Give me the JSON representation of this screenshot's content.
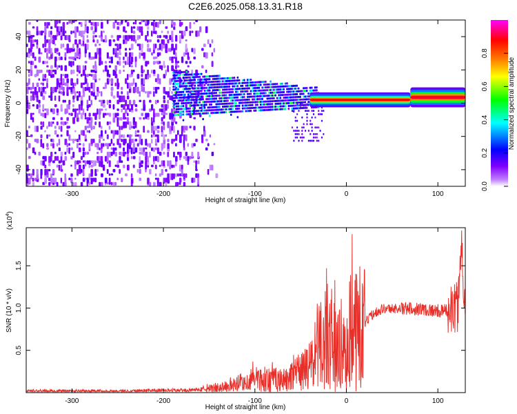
{
  "title": "C2E6.2025.058.13.31.R18",
  "chart_data": [
    {
      "type": "heatmap",
      "xlabel": "Height of straight line (km)",
      "ylabel": "Frequency (Hz)",
      "xlim": [
        -350,
        130
      ],
      "ylim": [
        -50,
        50
      ],
      "xticks": [
        -300,
        -200,
        -100,
        0,
        100
      ],
      "yticks": [
        -40,
        -20,
        0,
        20,
        40
      ],
      "colorbar": {
        "label": "Normalized spectral amplitude",
        "range": [
          0,
          1
        ],
        "ticks": [
          "0.0",
          "0.2",
          "0.4",
          "0.6",
          "0.8"
        ],
        "colormap": [
          "#ffffff",
          "#8000ff",
          "#0000ff",
          "#00ffff",
          "#00ff00",
          "#ffff00",
          "#ff8000",
          "#ff0000",
          "#ff00ff"
        ]
      },
      "regions": [
        {
          "x": [
            -350,
            -180
          ],
          "freq": [
            -50,
            50
          ],
          "amplitude": 0.05,
          "note_color": "#7f00ff"
        },
        {
          "x": [
            -190,
            -40
          ],
          "freq": [
            -20,
            20
          ],
          "amplitude": 0.25
        },
        {
          "x": [
            -40,
            70
          ],
          "freq": [
            0,
            4
          ],
          "amplitude": 0.9
        },
        {
          "x": [
            70,
            130
          ],
          "freq": [
            2,
            6
          ],
          "amplitude": 0.8
        }
      ]
    },
    {
      "type": "line",
      "xlabel": "Height of straight line (km)",
      "ylabel": "SNR (10 * v/v)",
      "scale_label": "(x10",
      "scale_exp": "4",
      "xlim": [
        -350,
        130
      ],
      "ylim": [
        0,
        1.95
      ],
      "xticks": [
        -300,
        -200,
        -100,
        0,
        100
      ],
      "yticks": [
        "0.5",
        "1.0",
        "1.5"
      ],
      "series": [
        {
          "color": "#e8302a",
          "points": [
            [
              -350,
              0.02
            ],
            [
              -300,
              0.02
            ],
            [
              -250,
              0.02
            ],
            [
              -200,
              0.03
            ],
            [
              -170,
              0.03
            ],
            [
              -150,
              0.05
            ],
            [
              -130,
              0.08
            ],
            [
              -110,
              0.12
            ],
            [
              -100,
              0.18
            ],
            [
              -90,
              0.15
            ],
            [
              -80,
              0.17
            ],
            [
              -70,
              0.15
            ],
            [
              -60,
              0.2
            ],
            [
              -50,
              0.25
            ],
            [
              -40,
              0.35
            ],
            [
              -30,
              0.55
            ],
            [
              -20,
              0.75
            ],
            [
              -10,
              0.6
            ],
            [
              0,
              0.45
            ],
            [
              8,
              1.1
            ],
            [
              15,
              0.75
            ],
            [
              22,
              0.85
            ],
            [
              30,
              0.95
            ],
            [
              40,
              1.0
            ],
            [
              60,
              1.0
            ],
            [
              80,
              1.0
            ],
            [
              95,
              0.98
            ],
            [
              105,
              0.97
            ],
            [
              115,
              1.0
            ],
            [
              122,
              1.05
            ],
            [
              126,
              1.8
            ],
            [
              128,
              1.3
            ],
            [
              130,
              1.1
            ]
          ]
        }
      ]
    }
  ]
}
